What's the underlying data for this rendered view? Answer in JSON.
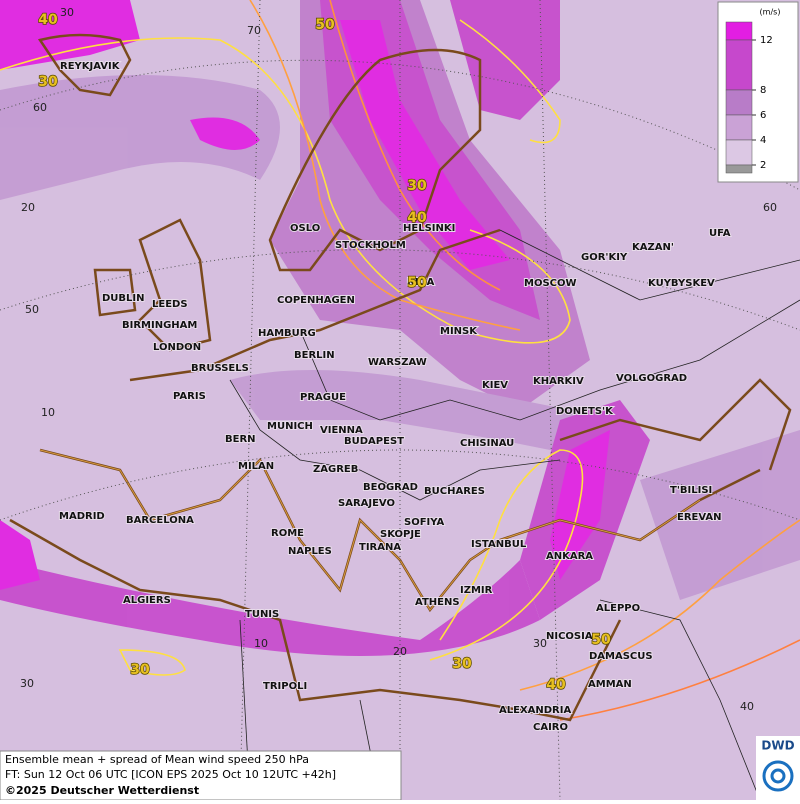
{
  "map": {
    "cities": [
      "REYKJAVIK",
      "DUBLIN",
      "LEEDS",
      "BIRMINGHAM",
      "LONDON",
      "BRUSSELS",
      "PARIS",
      "OSLO",
      "STOCKHOLM",
      "HELSINKI",
      "RIGA",
      "COPENHAGEN",
      "HAMBURG",
      "BERLIN",
      "MINSK",
      "MOSCOW",
      "GOR'KIY",
      "KAZAN'",
      "UFA",
      "KUYBYSKEV",
      "WARSZAW",
      "KIEV",
      "KHARKIV",
      "VOLGOGRAD",
      "PRAGUE",
      "DONETS'K",
      "MUNICH",
      "VIENNA",
      "BUDAPEST",
      "BERN",
      "CHISINAU",
      "MILAN",
      "ZAGREB",
      "BEOGRAD",
      "BUCHARES",
      "T'BILISI",
      "MADRID",
      "BARCELONA",
      "SARAJEVO",
      "SOFIYA",
      "EREVAN",
      "ROME",
      "SKOPJE",
      "ISTANBUL",
      "NAPLES",
      "TIRANA",
      "ANKARA",
      "IZMIR",
      "ALGIERS",
      "ATHENS",
      "ALEPPO",
      "TUNIS",
      "NICOSIA",
      "DAMASCUS",
      "TRIPOLI",
      "AMMAN",
      "ALEXANDRIA",
      "CAIRO"
    ],
    "contour_labels": [
      40,
      30,
      50,
      30,
      40,
      50,
      30,
      30,
      40,
      50
    ],
    "graticule_labels": [
      30,
      70,
      60,
      20,
      50,
      10,
      30,
      10,
      20,
      30,
      40,
      60
    ]
  },
  "legend": {
    "unit": "(m/s)",
    "levels": [
      12,
      8,
      6,
      4,
      2
    ],
    "colors": [
      "#e21ee2",
      "#c648cc",
      "#b87cc8",
      "#caa2d6",
      "#dcc8e4"
    ]
  },
  "footer": {
    "line1": "Ensemble mean + spread of Mean wind speed 250 hPa",
    "line2": "FT: Sun 12 Oct 06 UTC [ICON EPS 2025 Oct 10 12UTC +42h]",
    "copyright": "©2025 Deutscher Wetterdienst"
  },
  "logo": "DWD"
}
